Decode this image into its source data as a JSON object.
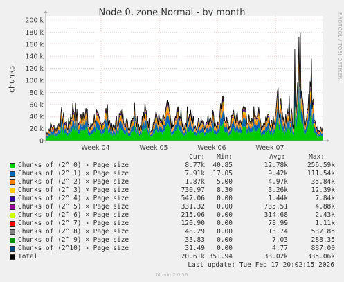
{
  "chart_data": {
    "type": "area",
    "title": "Node 0, zone Normal - by month",
    "ylabel": "chunks",
    "side_label": "RRDTOOL / TOBI OETIKER",
    "ylim": [
      0,
      200000
    ],
    "y_ticks": [
      "0",
      "20 k",
      "40 k",
      "60 k",
      "80 k",
      "100 k",
      "120 k",
      "140 k",
      "160 k",
      "180 k",
      "200 k"
    ],
    "y_tick_values": [
      0,
      20000,
      40000,
      60000,
      80000,
      100000,
      120000,
      140000,
      160000,
      180000,
      200000
    ],
    "x_ticks": [
      "Week 04",
      "Week 05",
      "Week 06",
      "Week 07"
    ],
    "stacked": true,
    "total_profile": [
      [
        0,
        12000
      ],
      [
        0.02,
        26000
      ],
      [
        0.04,
        20000
      ],
      [
        0.06,
        44000
      ],
      [
        0.08,
        24000
      ],
      [
        0.1,
        60000
      ],
      [
        0.12,
        30000
      ],
      [
        0.14,
        58000
      ],
      [
        0.16,
        20000
      ],
      [
        0.18,
        46000
      ],
      [
        0.2,
        26000
      ],
      [
        0.22,
        52000
      ],
      [
        0.24,
        18000
      ],
      [
        0.26,
        36000
      ],
      [
        0.28,
        48000
      ],
      [
        0.3,
        22000
      ],
      [
        0.32,
        54000
      ],
      [
        0.34,
        24000
      ],
      [
        0.36,
        50000
      ],
      [
        0.38,
        20000
      ],
      [
        0.4,
        44000
      ],
      [
        0.42,
        28000
      ],
      [
        0.44,
        56000
      ],
      [
        0.46,
        22000
      ],
      [
        0.48,
        50000
      ],
      [
        0.5,
        24000
      ],
      [
        0.52,
        56000
      ],
      [
        0.54,
        20000
      ],
      [
        0.56,
        40000
      ],
      [
        0.58,
        30000
      ],
      [
        0.6,
        48000
      ],
      [
        0.62,
        24000
      ],
      [
        0.64,
        64000
      ],
      [
        0.66,
        22000
      ],
      [
        0.68,
        46000
      ],
      [
        0.7,
        30000
      ],
      [
        0.72,
        56000
      ],
      [
        0.74,
        24000
      ],
      [
        0.76,
        58000
      ],
      [
        0.78,
        26000
      ],
      [
        0.8,
        44000
      ],
      [
        0.82,
        34000
      ],
      [
        0.84,
        70000
      ],
      [
        0.86,
        30000
      ],
      [
        0.88,
        62000
      ],
      [
        0.9,
        24000
      ],
      [
        0.92,
        166000
      ],
      [
        0.935,
        30000
      ],
      [
        0.95,
        58000
      ],
      [
        0.96,
        125000
      ],
      [
        0.97,
        40000
      ],
      [
        0.98,
        18000
      ],
      [
        1.0,
        20000
      ]
    ],
    "series": [
      {
        "name": "Chunks of (2^ 0) × Page size",
        "color": "#00cc00",
        "cur": "8.77k",
        "min": "40.85",
        "avg": "12.78k",
        "max": "256.59k"
      },
      {
        "name": "Chunks of (2^ 1) × Page size",
        "color": "#0066b3",
        "cur": "7.91k",
        "min": "17.05",
        "avg": "9.42k",
        "max": "111.54k"
      },
      {
        "name": "Chunks of (2^ 2) × Page size",
        "color": "#ff8000",
        "cur": "1.87k",
        "min": "5.00",
        "avg": "4.97k",
        "max": "35.84k"
      },
      {
        "name": "Chunks of (2^ 3) × Page size",
        "color": "#ffcc00",
        "cur": "730.97",
        "min": "8.30",
        "avg": "3.26k",
        "max": "12.39k"
      },
      {
        "name": "Chunks of (2^ 4) × Page size",
        "color": "#330099",
        "cur": "547.06",
        "min": "0.00",
        "avg": "1.44k",
        "max": "7.84k"
      },
      {
        "name": "Chunks of (2^ 5) × Page size",
        "color": "#990099",
        "cur": "331.32",
        "min": "0.00",
        "avg": "735.51",
        "max": "4.88k"
      },
      {
        "name": "Chunks of (2^ 6) × Page size",
        "color": "#ccff00",
        "cur": "215.06",
        "min": "0.00",
        "avg": "314.68",
        "max": "2.43k"
      },
      {
        "name": "Chunks of (2^ 7) × Page size",
        "color": "#ff0000",
        "cur": "120.90",
        "min": "0.00",
        "avg": "78.99",
        "max": "1.11k"
      },
      {
        "name": "Chunks of (2^ 8) × Page size",
        "color": "#808080",
        "cur": "48.29",
        "min": "0.00",
        "avg": "13.74",
        "max": "537.85"
      },
      {
        "name": "Chunks of (2^ 9) × Page size",
        "color": "#008f00",
        "cur": "33.83",
        "min": "0.00",
        "avg": "7.03",
        "max": "288.35"
      },
      {
        "name": "Chunks of (2^10) × Page size",
        "color": "#00487d",
        "cur": "31.49",
        "min": "0.00",
        "avg": "4.77",
        "max": "887.00"
      },
      {
        "name": "Total",
        "color": "#000000",
        "cur": "20.61k",
        "min": "351.94",
        "avg": "33.02k",
        "max": "335.06k"
      }
    ],
    "legend_headers": {
      "cur": "Cur:",
      "min": "Min:",
      "avg": "Avg:",
      "max": "Max:"
    }
  },
  "last_update": "Last update: Tue Feb 17 20:02:15 2026",
  "footer": "Munin 2.0.56"
}
